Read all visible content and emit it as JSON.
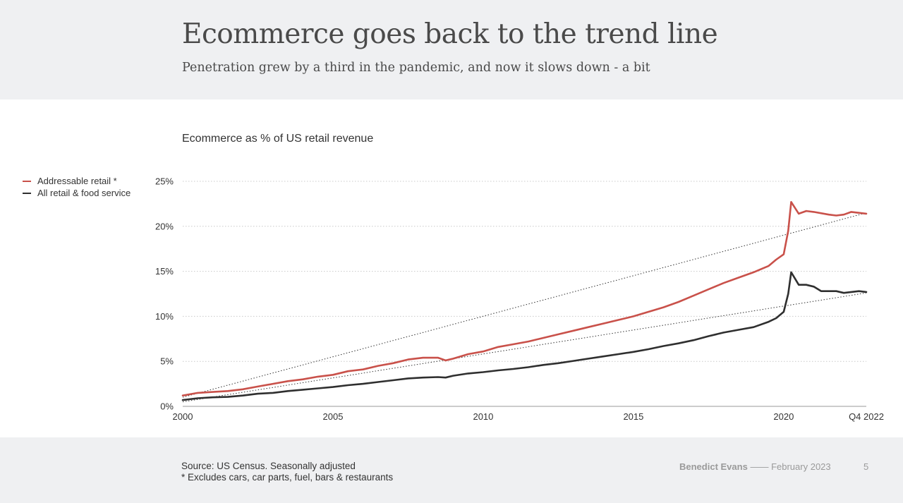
{
  "header": {
    "title": "Ecommerce goes back to the trend line",
    "subtitle": "Penetration grew by a third in the pandemic, and now it slows down - a bit"
  },
  "chart_label": "Ecommerce as % of US retail revenue",
  "legend": [
    {
      "label": "Addressable retail *",
      "color": "#c9514a"
    },
    {
      "label": "All retail & food service",
      "color": "#2f2f2f"
    }
  ],
  "chart_data": {
    "type": "line",
    "title": "Ecommerce as % of US retail revenue",
    "xlabel": "",
    "ylabel": "",
    "xlim": [
      2000,
      2022.75
    ],
    "ylim": [
      0,
      25
    ],
    "y_ticks": [
      {
        "value": 0,
        "label": "0%"
      },
      {
        "value": 5,
        "label": "5%"
      },
      {
        "value": 10,
        "label": "10%"
      },
      {
        "value": 15,
        "label": "15%"
      },
      {
        "value": 20,
        "label": "20%"
      },
      {
        "value": 25,
        "label": "25%"
      }
    ],
    "x_ticks": [
      {
        "value": 2000,
        "label": "2000"
      },
      {
        "value": 2005,
        "label": "2005"
      },
      {
        "value": 2010,
        "label": "2010"
      },
      {
        "value": 2015,
        "label": "2015"
      },
      {
        "value": 2020,
        "label": "2020"
      },
      {
        "value": 2022.75,
        "label": "Q4 2022"
      }
    ],
    "series": [
      {
        "name": "Addressable retail *",
        "color": "#c9514a",
        "points": [
          [
            2000,
            1.2
          ],
          [
            2000.5,
            1.5
          ],
          [
            2001,
            1.6
          ],
          [
            2001.5,
            1.7
          ],
          [
            2002,
            1.9
          ],
          [
            2002.5,
            2.2
          ],
          [
            2003,
            2.5
          ],
          [
            2003.5,
            2.8
          ],
          [
            2004,
            3.0
          ],
          [
            2004.5,
            3.3
          ],
          [
            2005,
            3.5
          ],
          [
            2005.5,
            3.9
          ],
          [
            2006,
            4.1
          ],
          [
            2006.5,
            4.5
          ],
          [
            2007,
            4.8
          ],
          [
            2007.5,
            5.2
          ],
          [
            2008,
            5.4
          ],
          [
            2008.5,
            5.4
          ],
          [
            2008.75,
            5.1
          ],
          [
            2009,
            5.3
          ],
          [
            2009.5,
            5.8
          ],
          [
            2010,
            6.1
          ],
          [
            2010.5,
            6.6
          ],
          [
            2011,
            6.9
          ],
          [
            2011.5,
            7.2
          ],
          [
            2012,
            7.6
          ],
          [
            2012.5,
            8.0
          ],
          [
            2013,
            8.4
          ],
          [
            2013.5,
            8.8
          ],
          [
            2014,
            9.2
          ],
          [
            2014.5,
            9.6
          ],
          [
            2015,
            10.0
          ],
          [
            2015.5,
            10.5
          ],
          [
            2016,
            11.0
          ],
          [
            2016.5,
            11.6
          ],
          [
            2017,
            12.3
          ],
          [
            2017.5,
            13.0
          ],
          [
            2018,
            13.7
          ],
          [
            2018.5,
            14.3
          ],
          [
            2019,
            14.9
          ],
          [
            2019.5,
            15.6
          ],
          [
            2019.75,
            16.3
          ],
          [
            2020,
            16.9
          ],
          [
            2020.15,
            19.5
          ],
          [
            2020.25,
            22.7
          ],
          [
            2020.5,
            21.4
          ],
          [
            2020.75,
            21.7
          ],
          [
            2021,
            21.6
          ],
          [
            2021.5,
            21.3
          ],
          [
            2021.75,
            21.2
          ],
          [
            2022,
            21.3
          ],
          [
            2022.25,
            21.6
          ],
          [
            2022.5,
            21.5
          ],
          [
            2022.75,
            21.4
          ]
        ]
      },
      {
        "name": "All retail & food service",
        "color": "#2f2f2f",
        "points": [
          [
            2000,
            0.7
          ],
          [
            2000.5,
            0.9
          ],
          [
            2001,
            1.0
          ],
          [
            2001.5,
            1.05
          ],
          [
            2002,
            1.2
          ],
          [
            2002.5,
            1.4
          ],
          [
            2003,
            1.5
          ],
          [
            2003.5,
            1.7
          ],
          [
            2004,
            1.85
          ],
          [
            2004.5,
            2.0
          ],
          [
            2005,
            2.15
          ],
          [
            2005.5,
            2.35
          ],
          [
            2006,
            2.5
          ],
          [
            2006.5,
            2.7
          ],
          [
            2007,
            2.9
          ],
          [
            2007.5,
            3.1
          ],
          [
            2008,
            3.2
          ],
          [
            2008.5,
            3.25
          ],
          [
            2008.75,
            3.2
          ],
          [
            2009,
            3.4
          ],
          [
            2009.5,
            3.65
          ],
          [
            2010,
            3.8
          ],
          [
            2010.5,
            4.0
          ],
          [
            2011,
            4.15
          ],
          [
            2011.5,
            4.35
          ],
          [
            2012,
            4.6
          ],
          [
            2012.5,
            4.8
          ],
          [
            2013,
            5.05
          ],
          [
            2013.5,
            5.3
          ],
          [
            2014,
            5.55
          ],
          [
            2014.5,
            5.8
          ],
          [
            2015,
            6.05
          ],
          [
            2015.5,
            6.35
          ],
          [
            2016,
            6.7
          ],
          [
            2016.5,
            7.0
          ],
          [
            2017,
            7.35
          ],
          [
            2017.5,
            7.8
          ],
          [
            2018,
            8.2
          ],
          [
            2018.5,
            8.5
          ],
          [
            2019,
            8.8
          ],
          [
            2019.5,
            9.4
          ],
          [
            2019.75,
            9.8
          ],
          [
            2020,
            10.5
          ],
          [
            2020.15,
            12.5
          ],
          [
            2020.25,
            14.9
          ],
          [
            2020.5,
            13.5
          ],
          [
            2020.75,
            13.5
          ],
          [
            2021,
            13.3
          ],
          [
            2021.25,
            12.8
          ],
          [
            2021.75,
            12.8
          ],
          [
            2022,
            12.6
          ],
          [
            2022.25,
            12.7
          ],
          [
            2022.5,
            12.8
          ],
          [
            2022.75,
            12.7
          ]
        ]
      }
    ],
    "trend_lines": [
      {
        "name": "Addressable retail trend",
        "points": [
          [
            2000,
            1.0
          ],
          [
            2022.75,
            21.5
          ]
        ]
      },
      {
        "name": "All retail trend",
        "points": [
          [
            2000,
            0.5
          ],
          [
            2022.75,
            12.6
          ]
        ]
      }
    ]
  },
  "footer": {
    "source_line1": "Source: US Census. Seasonally adjusted",
    "source_line2": "* Excludes cars, car parts, fuel, bars & restaurants",
    "author": "Benedict Evans",
    "separator": "——",
    "date": "February 2023",
    "page": "5"
  }
}
